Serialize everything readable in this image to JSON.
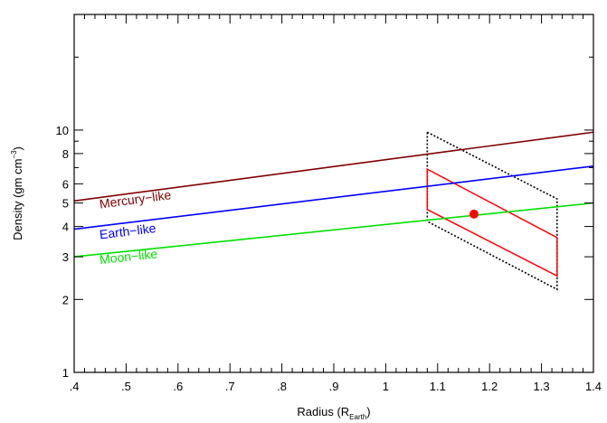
{
  "chart_data": {
    "type": "line",
    "xlabel": {
      "main": "Radius (R",
      "sub": "Earth",
      "close": ")"
    },
    "ylabel": {
      "main": "Density (gm cm",
      "sup": "−3",
      "close": ")"
    },
    "xlim": [
      0.4,
      1.4
    ],
    "ylim": [
      1,
      30
    ],
    "yscale": "log",
    "grid": false,
    "x_ticks": [
      {
        "value": 0.4,
        "label": ".4"
      },
      {
        "value": 0.5,
        "label": ".5"
      },
      {
        "value": 0.6,
        "label": ".6"
      },
      {
        "value": 0.7,
        "label": ".7"
      },
      {
        "value": 0.8,
        "label": ".8"
      },
      {
        "value": 0.9,
        "label": ".9"
      },
      {
        "value": 1.0,
        "label": "1"
      },
      {
        "value": 1.1,
        "label": "1.1"
      },
      {
        "value": 1.2,
        "label": "1.2"
      },
      {
        "value": 1.3,
        "label": "1.3"
      },
      {
        "value": 1.4,
        "label": "1.4"
      }
    ],
    "y_ticks": [
      {
        "value": 1,
        "label": "1"
      },
      {
        "value": 2,
        "label": "2"
      },
      {
        "value": 3,
        "label": "3"
      },
      {
        "value": 4,
        "label": "4"
      },
      {
        "value": 5,
        "label": "5"
      },
      {
        "value": 6,
        "label": "6"
      },
      {
        "value": 8,
        "label": "8"
      },
      {
        "value": 10,
        "label": "10"
      }
    ],
    "series": [
      {
        "name": "Mercury−like",
        "color": "#800000",
        "x": [
          0.4,
          1.4
        ],
        "y": [
          5.1,
          9.8
        ],
        "label_at": [
          0.45,
          4.75
        ]
      },
      {
        "name": "Earth−like",
        "color": "#0000ff",
        "x": [
          0.4,
          1.4
        ],
        "y": [
          3.9,
          7.1
        ],
        "label_at": [
          0.45,
          3.55
        ]
      },
      {
        "name": "Moon−like",
        "color": "#00e000",
        "x": [
          0.4,
          1.4
        ],
        "y": [
          3.0,
          5.0
        ],
        "label_at": [
          0.45,
          2.8
        ]
      }
    ],
    "regions": [
      {
        "style": "dotted",
        "color": "#000000",
        "x": [
          1.08,
          1.33,
          1.33,
          1.08
        ],
        "y": [
          9.8,
          5.2,
          2.2,
          4.2
        ]
      },
      {
        "style": "solid",
        "color": "#ff0000",
        "x": [
          1.08,
          1.33,
          1.33,
          1.08
        ],
        "y": [
          6.9,
          3.6,
          2.5,
          4.7
        ]
      }
    ],
    "points": [
      {
        "color": "#ff0000",
        "x": 1.17,
        "y": 4.5
      }
    ]
  }
}
